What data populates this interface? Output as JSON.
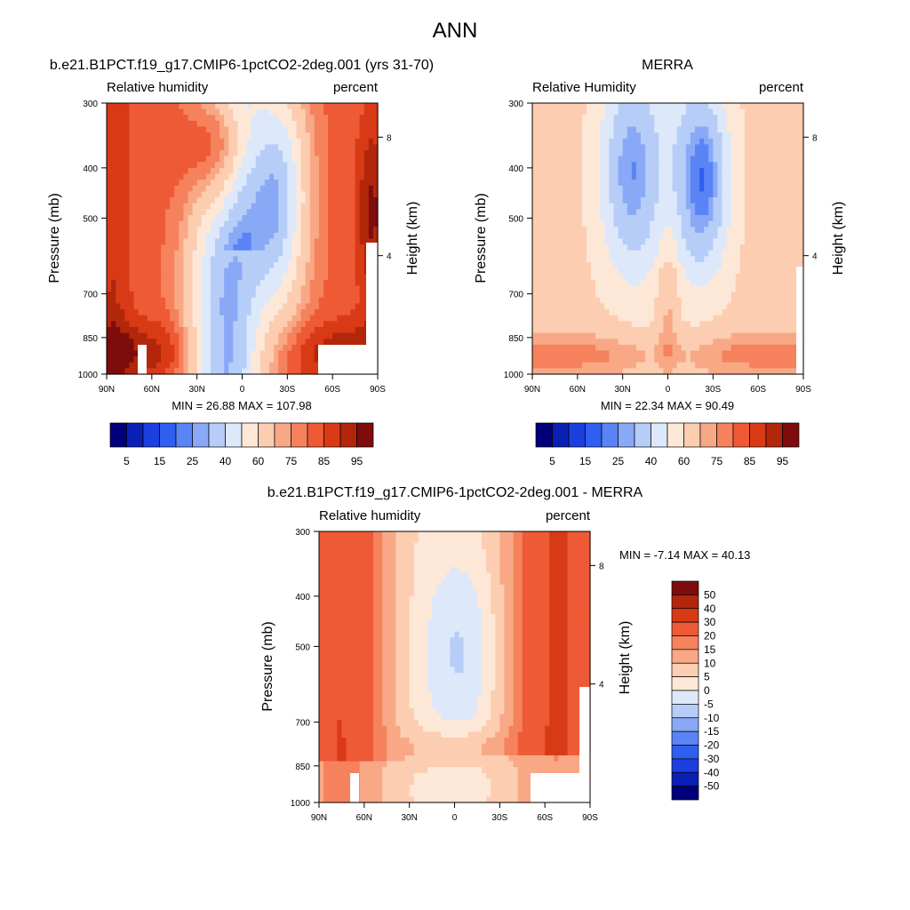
{
  "page_title": "ANN",
  "chart_data": [
    {
      "type": "heatmap",
      "id": "model",
      "title": "b.e21.B1PCT.f19_g17.CMIP6-1pctCO2-2deg.001 (yrs 31-70)",
      "left_string": "Relative humidity",
      "right_string": "percent",
      "xlabel": "",
      "ylabel": "Pressure (mb)",
      "y2label": "Height (km)",
      "x_ticks": [
        "90N",
        "60N",
        "30N",
        "0",
        "30S",
        "60S",
        "90S"
      ],
      "y_ticks": [
        "300",
        "400",
        "500",
        "700",
        "850",
        "1000"
      ],
      "y2_ticks": [
        "8",
        "4"
      ],
      "xlim": [
        -90,
        90
      ],
      "ylim": [
        1000,
        300
      ],
      "stats": "MIN =  26.88  MAX = 107.98",
      "min": 26.88,
      "max": 107.98,
      "colorbar_labels": [
        "5",
        "15",
        "25",
        "40",
        "60",
        "75",
        "85",
        "95"
      ]
    },
    {
      "type": "heatmap",
      "id": "obs",
      "title": "MERRA",
      "left_string": "Relative Humidity",
      "right_string": "percent",
      "xlabel": "",
      "ylabel": "Pressure (mb)",
      "y2label": "Height (km)",
      "x_ticks": [
        "90N",
        "60N",
        "30N",
        "0",
        "30S",
        "60S",
        "90S"
      ],
      "y_ticks": [
        "300",
        "400",
        "500",
        "700",
        "850",
        "1000"
      ],
      "y2_ticks": [
        "8",
        "4"
      ],
      "xlim": [
        -90,
        90
      ],
      "ylim": [
        1000,
        300
      ],
      "stats": "MIN =  22.34  MAX =  90.49",
      "min": 22.34,
      "max": 90.49,
      "colorbar_labels": [
        "5",
        "15",
        "25",
        "40",
        "60",
        "75",
        "85",
        "95"
      ]
    },
    {
      "type": "heatmap",
      "id": "diff",
      "title": "b.e21.B1PCT.f19_g17.CMIP6-1pctCO2-2deg.001 - MERRA",
      "left_string": "Relative humidity",
      "right_string": "percent",
      "xlabel": "",
      "ylabel": "Pressure (mb)",
      "y2label": "Height (km)",
      "x_ticks": [
        "90N",
        "60N",
        "30N",
        "0",
        "30S",
        "60S",
        "90S"
      ],
      "y_ticks": [
        "300",
        "400",
        "500",
        "700",
        "850",
        "1000"
      ],
      "y2_ticks": [
        "8",
        "4"
      ],
      "xlim": [
        -90,
        90
      ],
      "ylim": [
        1000,
        300
      ],
      "stats": "MIN =  -7.14  MAX =  40.13",
      "min": -7.14,
      "max": 40.13,
      "colorbar_labels": [
        "50",
        "40",
        "30",
        "20",
        "15",
        "10",
        "5",
        "0",
        "-5",
        "-10",
        "-15",
        "-20",
        "-30",
        "-40",
        "-50"
      ]
    }
  ],
  "colors": {
    "rh_scale": [
      "#00007a",
      "#0a1fb4",
      "#1c3fe0",
      "#2f5ff0",
      "#5a84f5",
      "#89a9f7",
      "#b6cdf8",
      "#dde9fb",
      "#fde8d7",
      "#fccdb1",
      "#f9a886",
      "#f5825d",
      "#ee5a36",
      "#d93a16",
      "#b2260c",
      "#7e0c0c"
    ],
    "diff_scale": [
      "#7e0c0c",
      "#b2260c",
      "#d93a16",
      "#ee5a36",
      "#f5825d",
      "#f9a886",
      "#fccdb1",
      "#fde8d7",
      "#dde9fb",
      "#b6cdf8",
      "#89a9f7",
      "#5a84f5",
      "#2f5ff0",
      "#1c3fe0",
      "#0a1fb4",
      "#00007a"
    ]
  }
}
